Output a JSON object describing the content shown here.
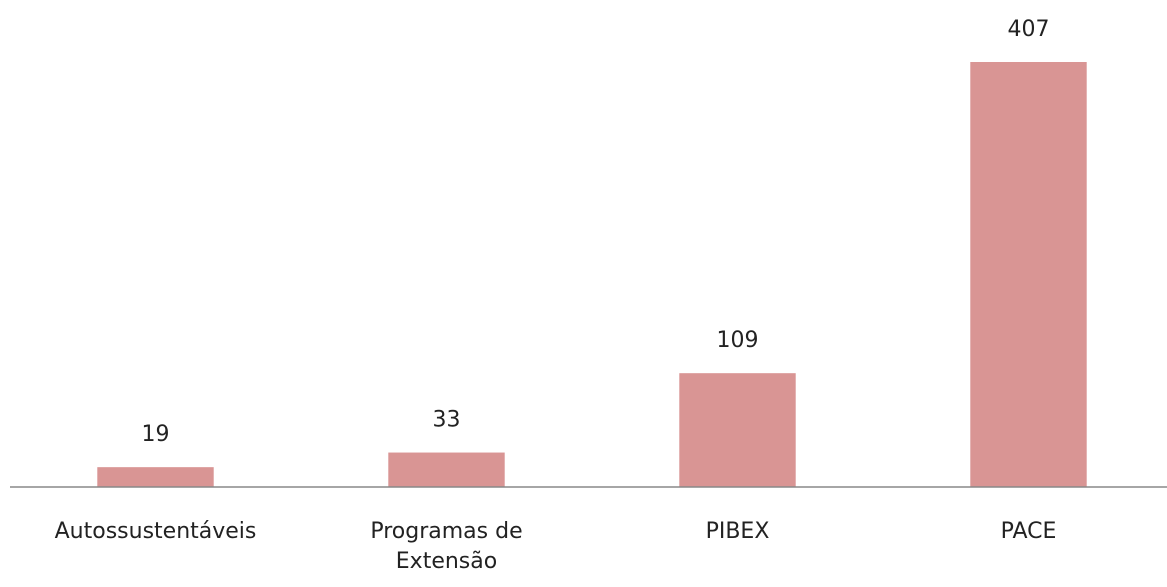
{
  "chart_data": {
    "type": "bar",
    "categories": [
      "Autossustentáveis",
      "Programas de Extensão",
      "PIBEX",
      "PACE"
    ],
    "values": [
      19,
      33,
      109,
      407
    ],
    "color": "#d99594",
    "ylim": [
      0,
      407
    ]
  }
}
